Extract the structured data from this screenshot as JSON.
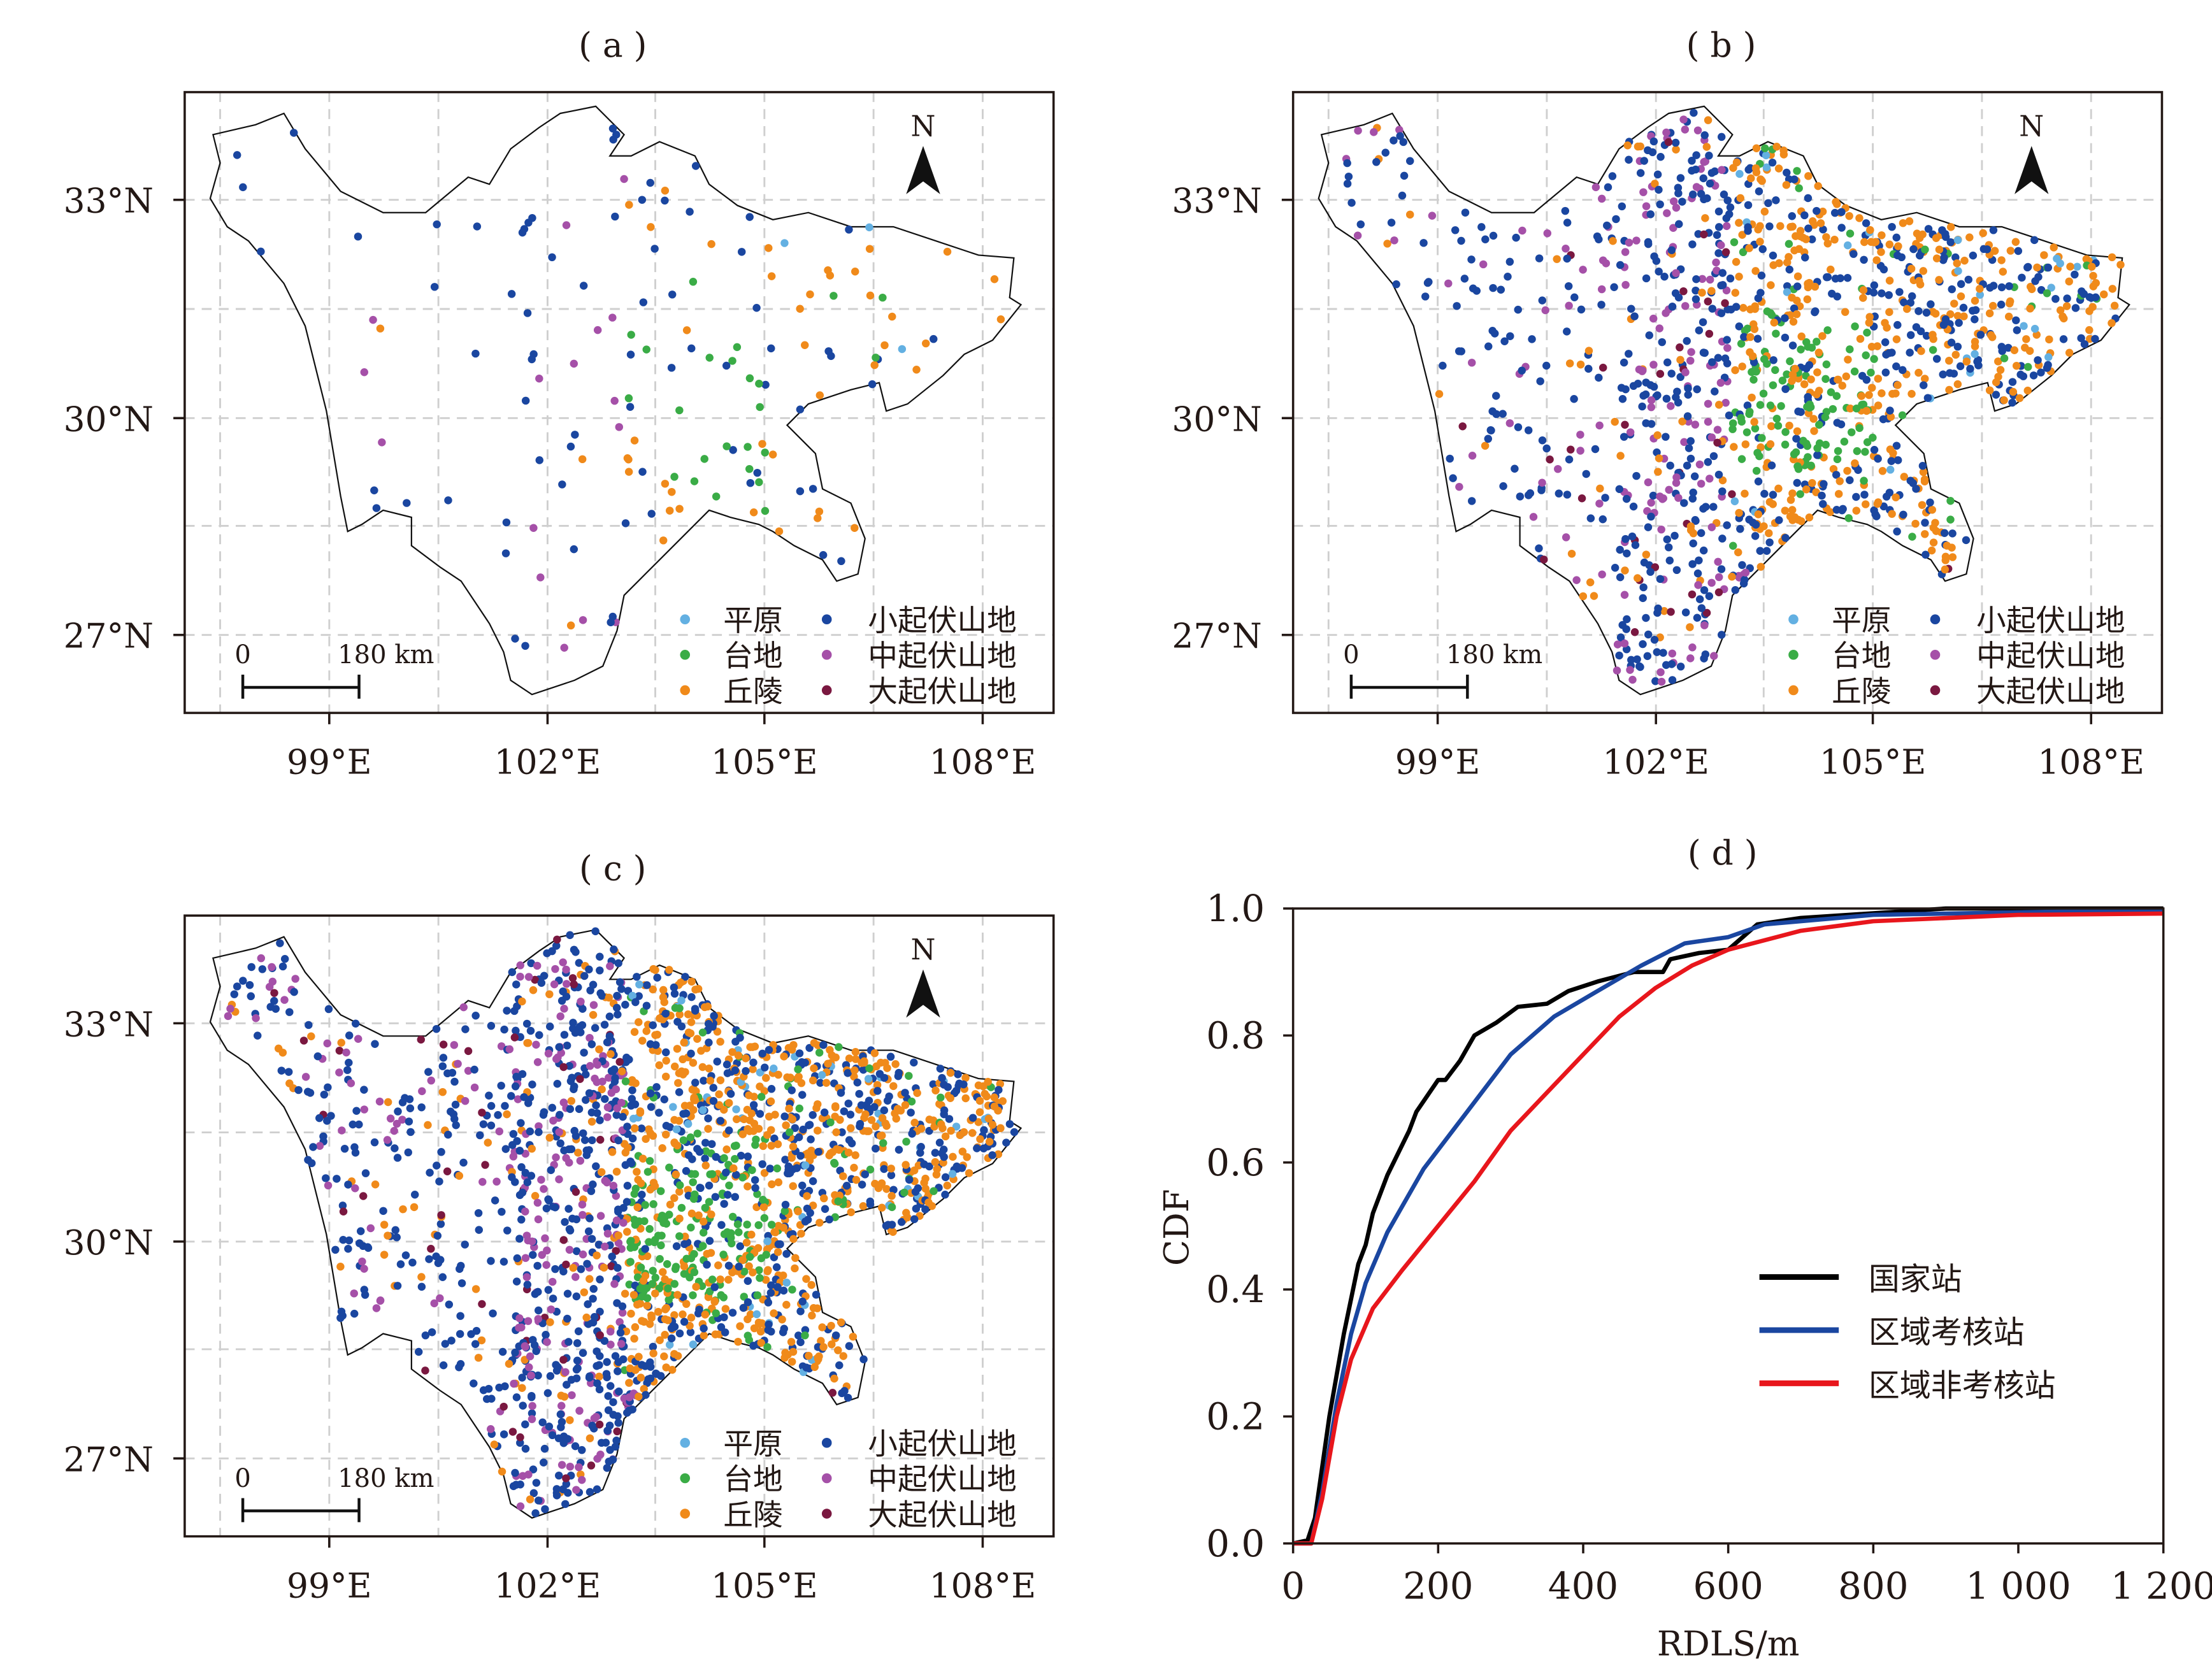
{
  "panels": [
    {
      "title": "( a )",
      "scale_zero": "0",
      "scale_label": "180 km",
      "north": "N"
    },
    {
      "title": "( b )",
      "scale_zero": "0",
      "scale_label": "180 km",
      "north": "N"
    },
    {
      "title": "( c )",
      "scale_zero": "0",
      "scale_label": "180 km",
      "north": "N"
    }
  ],
  "map_axes": {
    "lat_labels": [
      "33°N",
      "30°N",
      "27°N"
    ],
    "lon_labels": [
      "99°E",
      "102°E",
      "105°E",
      "108°E"
    ]
  },
  "map_legend": [
    {
      "label": "平原",
      "color": "#63b0e2"
    },
    {
      "label": "台地",
      "color": "#3aac46"
    },
    {
      "label": "丘陵",
      "color": "#f08a1a"
    },
    {
      "label": "小起伏山地",
      "color": "#1a46a0"
    },
    {
      "label": "中起伏山地",
      "color": "#a550a8"
    },
    {
      "label": "大起伏山地",
      "color": "#7a1840"
    }
  ],
  "chart_data": {
    "type": "line",
    "title": "( d )",
    "xlabel": "RDLS/m",
    "ylabel": "CDF",
    "xlim": [
      0,
      1200
    ],
    "ylim": [
      0,
      1.0
    ],
    "xticks": [
      "0",
      "200",
      "400",
      "600",
      "800",
      "1 000",
      "1 200"
    ],
    "yticks": [
      "0.0",
      "0.2",
      "0.4",
      "0.6",
      "0.8",
      "1.0"
    ],
    "legend_position": "center-right",
    "series": [
      {
        "name": "国家站",
        "color": "#000000",
        "x": [
          0,
          20,
          30,
          50,
          70,
          90,
          100,
          110,
          130,
          160,
          170,
          200,
          210,
          230,
          250,
          280,
          310,
          350,
          380,
          420,
          470,
          510,
          520,
          560,
          600,
          640,
          700,
          900,
          1200
        ],
        "y": [
          0,
          0.005,
          0.04,
          0.2,
          0.33,
          0.44,
          0.47,
          0.52,
          0.58,
          0.65,
          0.68,
          0.73,
          0.73,
          0.76,
          0.8,
          0.82,
          0.845,
          0.85,
          0.87,
          0.885,
          0.9,
          0.9,
          0.92,
          0.93,
          0.935,
          0.975,
          0.985,
          1.0,
          1.0
        ]
      },
      {
        "name": "区域考核站",
        "color": "#1a46a0",
        "x": [
          0,
          25,
          40,
          60,
          80,
          100,
          130,
          180,
          240,
          300,
          360,
          420,
          480,
          540,
          600,
          650,
          800,
          1200
        ],
        "y": [
          0,
          0,
          0.08,
          0.22,
          0.33,
          0.41,
          0.49,
          0.59,
          0.68,
          0.77,
          0.83,
          0.87,
          0.91,
          0.945,
          0.955,
          0.975,
          0.99,
          0.998
        ]
      },
      {
        "name": "区域非考核站",
        "color": "#e8161c",
        "x": [
          0,
          25,
          40,
          60,
          80,
          110,
          150,
          200,
          250,
          300,
          350,
          400,
          450,
          500,
          550,
          600,
          700,
          800,
          1000,
          1200
        ],
        "y": [
          0,
          0,
          0.07,
          0.2,
          0.29,
          0.37,
          0.43,
          0.5,
          0.57,
          0.65,
          0.71,
          0.77,
          0.83,
          0.875,
          0.91,
          0.935,
          0.965,
          0.98,
          0.99,
          0.992
        ]
      }
    ]
  }
}
